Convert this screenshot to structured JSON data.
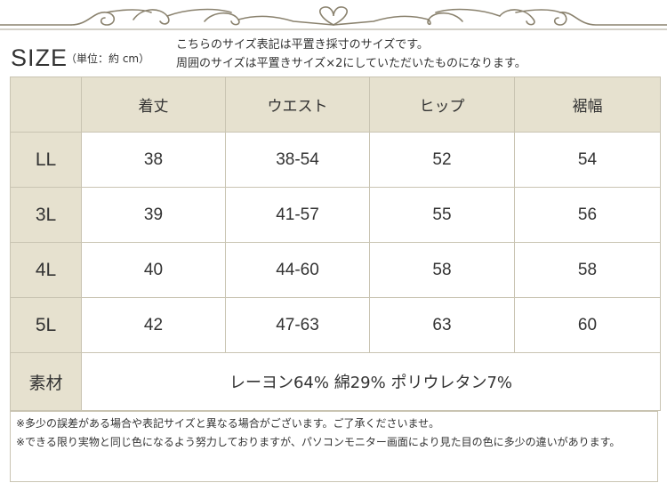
{
  "heading": {
    "size_label": "SIZE",
    "unit": "（単位：約 cm）"
  },
  "intro": {
    "line1": "こちらのサイズ表記は平置き採寸のサイズです。",
    "line2": "周囲のサイズは平置きサイズ×2にしていただいたものになります。"
  },
  "table": {
    "columns": [
      "",
      "着丈",
      "ウエスト",
      "ヒップ",
      "裾幅"
    ],
    "rows": [
      {
        "size": "LL",
        "values": [
          "38",
          "38-54",
          "52",
          "54"
        ]
      },
      {
        "size": "3L",
        "values": [
          "39",
          "41-57",
          "55",
          "56"
        ]
      },
      {
        "size": "4L",
        "values": [
          "40",
          "44-60",
          "58",
          "58"
        ]
      },
      {
        "size": "5L",
        "values": [
          "42",
          "47-63",
          "63",
          "60"
        ]
      }
    ],
    "material": {
      "label": "素材",
      "value": "レーヨン64% 綿29% ポリウレタン7%"
    }
  },
  "notes": {
    "line1": "※多少の誤差がある場合や表記サイズと異なる場合がございます。ご了承くださいませ。",
    "line2": "※できる限り実物と同じ色になるよう努力しておりますが、パソコンモニター画面により見た目の色に多少の違いがあります。"
  },
  "colors": {
    "header_bg": "#e6e1cf",
    "border": "#c9c4b2",
    "ornament": "#8a826e"
  },
  "icons": {
    "ornament": "decorative-scroll-border"
  }
}
